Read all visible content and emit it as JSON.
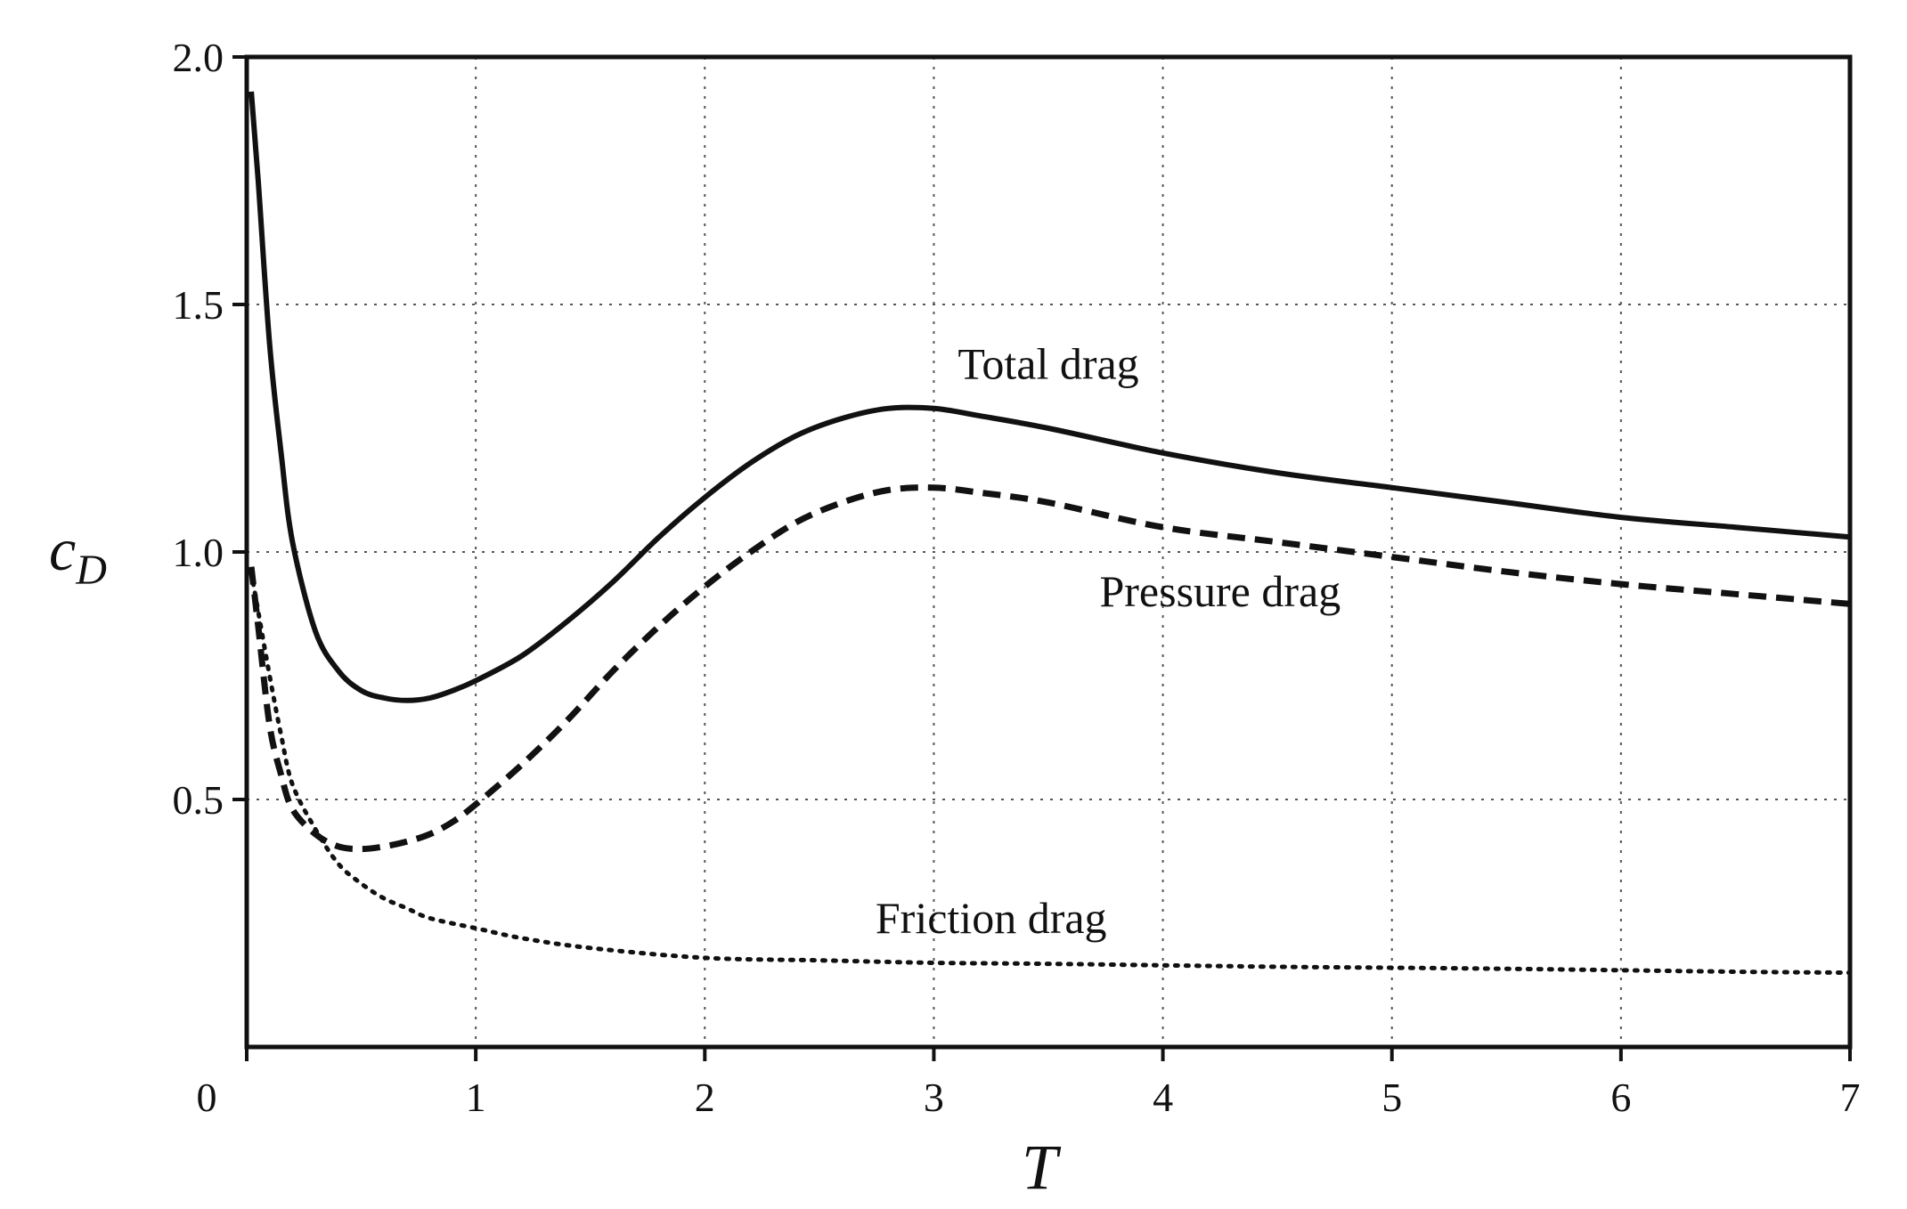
{
  "chart_data": {
    "type": "line",
    "title": "",
    "xlabel": "T",
    "ylabel": "c_D",
    "ylabel_main": "c",
    "ylabel_sub": "D",
    "xlim": [
      0,
      7
    ],
    "ylim": [
      0,
      2.0
    ],
    "xticks": [
      0,
      1,
      2,
      3,
      4,
      5,
      6,
      7
    ],
    "xtick_labels": [
      "0",
      "1",
      "2",
      "3",
      "4",
      "5",
      "6",
      "7"
    ],
    "yticks": [
      0.5,
      1.0,
      1.5,
      2.0
    ],
    "ytick_labels": [
      "0.5",
      "1.0",
      "1.5",
      "2.0"
    ],
    "grid": true,
    "legend": "none (curves labelled inline)",
    "series": [
      {
        "name": "Total drag",
        "style": "solid",
        "x": [
          0.02,
          0.05,
          0.1,
          0.15,
          0.2,
          0.3,
          0.4,
          0.5,
          0.6,
          0.7,
          0.8,
          0.9,
          1.0,
          1.2,
          1.4,
          1.6,
          1.8,
          2.0,
          2.2,
          2.4,
          2.6,
          2.8,
          3.0,
          3.2,
          3.5,
          4.0,
          4.5,
          5.0,
          5.5,
          6.0,
          6.5,
          7.0
        ],
        "y": [
          1.93,
          1.75,
          1.42,
          1.2,
          1.02,
          0.84,
          0.76,
          0.72,
          0.705,
          0.7,
          0.705,
          0.72,
          0.74,
          0.79,
          0.86,
          0.94,
          1.03,
          1.11,
          1.18,
          1.235,
          1.27,
          1.29,
          1.29,
          1.275,
          1.25,
          1.2,
          1.16,
          1.13,
          1.1,
          1.07,
          1.05,
          1.03
        ]
      },
      {
        "name": "Pressure drag",
        "style": "dashed",
        "x": [
          0.02,
          0.05,
          0.1,
          0.15,
          0.2,
          0.3,
          0.4,
          0.5,
          0.6,
          0.7,
          0.8,
          0.9,
          1.0,
          1.2,
          1.4,
          1.6,
          1.8,
          2.0,
          2.2,
          2.4,
          2.6,
          2.8,
          3.0,
          3.2,
          3.5,
          4.0,
          4.5,
          5.0,
          5.5,
          6.0,
          6.5,
          7.0
        ],
        "y": [
          0.97,
          0.85,
          0.65,
          0.55,
          0.48,
          0.43,
          0.405,
          0.4,
          0.405,
          0.415,
          0.43,
          0.455,
          0.49,
          0.57,
          0.66,
          0.76,
          0.85,
          0.93,
          1.0,
          1.06,
          1.1,
          1.125,
          1.13,
          1.12,
          1.1,
          1.05,
          1.02,
          0.99,
          0.96,
          0.935,
          0.915,
          0.895
        ]
      },
      {
        "name": "Friction drag",
        "style": "dotted",
        "x": [
          0.02,
          0.05,
          0.1,
          0.15,
          0.2,
          0.3,
          0.4,
          0.5,
          0.6,
          0.7,
          0.8,
          1.0,
          1.2,
          1.5,
          2.0,
          2.5,
          3.0,
          3.5,
          4.0,
          4.5,
          5.0,
          5.5,
          6.0,
          6.5,
          7.0
        ],
        "y": [
          0.96,
          0.88,
          0.75,
          0.63,
          0.53,
          0.44,
          0.37,
          0.33,
          0.3,
          0.28,
          0.26,
          0.24,
          0.22,
          0.2,
          0.18,
          0.175,
          0.17,
          0.168,
          0.165,
          0.162,
          0.16,
          0.158,
          0.155,
          0.152,
          0.15
        ]
      }
    ],
    "annotations": [
      {
        "text": "Total drag",
        "x": 3.5,
        "y": 1.35
      },
      {
        "text": "Pressure drag",
        "x": 4.25,
        "y": 0.89
      },
      {
        "text": "Friction drag",
        "x": 3.25,
        "y": 0.23
      }
    ]
  }
}
